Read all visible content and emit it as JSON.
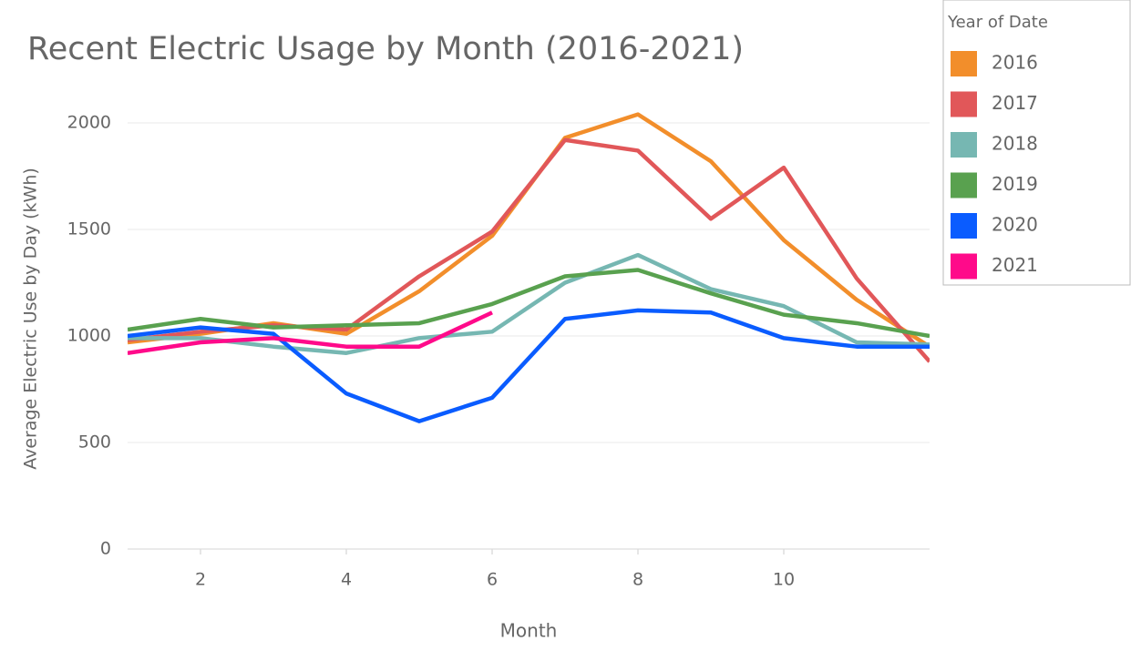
{
  "chart_data": {
    "type": "line",
    "title": "Recent Electric Usage by Month (2016-2021)",
    "x_label": "Month",
    "y_label": "Average Electric Use by Day (kWh)",
    "legend_title": "Year of Date",
    "x": [
      1,
      2,
      3,
      4,
      5,
      6,
      7,
      8,
      9,
      10,
      11,
      12
    ],
    "xlim": [
      1,
      12
    ],
    "xticks": [
      2,
      4,
      6,
      8,
      10
    ],
    "ylim": [
      0,
      2150
    ],
    "yticks": [
      0,
      500,
      1000,
      1500,
      2000
    ],
    "grid": true,
    "legend": "right",
    "series": [
      {
        "name": "2016",
        "color": "#f28e2b",
        "values": [
          970,
          1010,
          1060,
          1010,
          1210,
          1470,
          1930,
          2040,
          1820,
          1450,
          1170,
          950
        ]
      },
      {
        "name": "2017",
        "color": "#e15759",
        "values": [
          980,
          1020,
          1050,
          1030,
          1280,
          1490,
          1920,
          1870,
          1550,
          1790,
          1270,
          880
        ]
      },
      {
        "name": "2018",
        "color": "#76b7b2",
        "values": [
          990,
          990,
          950,
          920,
          990,
          1020,
          1250,
          1380,
          1220,
          1140,
          970,
          960
        ]
      },
      {
        "name": "2019",
        "color": "#59a14f",
        "values": [
          1030,
          1080,
          1040,
          1050,
          1060,
          1150,
          1280,
          1310,
          1200,
          1100,
          1060,
          1000
        ]
      },
      {
        "name": "2020",
        "color": "#0a5cff",
        "values": [
          1000,
          1040,
          1010,
          730,
          600,
          710,
          1080,
          1120,
          1110,
          990,
          950,
          950
        ]
      },
      {
        "name": "2021",
        "color": "#ff0a8a",
        "values": [
          920,
          970,
          990,
          950,
          950,
          1110,
          null,
          null,
          null,
          null,
          null,
          null
        ]
      }
    ]
  }
}
